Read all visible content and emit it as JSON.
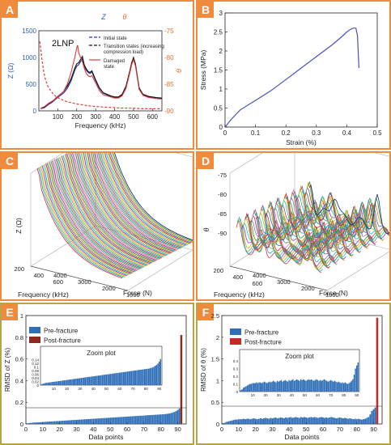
{
  "panels": {
    "A": {
      "label": "A"
    },
    "B": {
      "label": "B"
    },
    "C": {
      "label": "C"
    },
    "D": {
      "label": "D"
    },
    "E": {
      "label": "E"
    },
    "F": {
      "label": "F"
    }
  },
  "chart_data": [
    {
      "id": "A",
      "type": "line",
      "annotation": "2LNP",
      "xlabel": "Frequency (kHz)",
      "ylabel_left": "Z (Ω)",
      "ylabel_right": "θ",
      "top_symbols": {
        "left": "Z",
        "right": "θ"
      },
      "xlim": [
        0,
        650
      ],
      "ylim_left": [
        0,
        1500
      ],
      "ylim_right": [
        -90,
        -75
      ],
      "xticks": [
        "100",
        "200",
        "300",
        "400",
        "500",
        "600"
      ],
      "yticks_left": [
        "0",
        "500",
        "1000",
        "1500"
      ],
      "yticks_right": [
        "-75",
        "-80",
        "-85",
        "-90"
      ],
      "series": [
        {
          "name": "Initial state",
          "color": "#2233aa",
          "x": [
            10,
            30,
            50,
            70,
            90,
            110,
            130,
            150,
            170,
            190,
            200,
            210,
            220,
            230,
            240,
            250,
            260,
            270,
            280,
            300,
            320,
            340,
            360,
            380,
            400,
            420,
            440,
            460,
            480,
            490,
            500,
            510,
            520,
            530,
            550,
            580,
            620,
            650
          ],
          "y": [
            40,
            60,
            120,
            160,
            220,
            280,
            330,
            420,
            560,
            760,
            840,
            860,
            920,
            980,
            830,
            760,
            720,
            700,
            730,
            560,
            420,
            330,
            300,
            270,
            250,
            250,
            300,
            440,
            720,
            880,
            980,
            860,
            640,
            420,
            300,
            260,
            240,
            230
          ]
        },
        {
          "name": "Transition states (increasing compression load)",
          "color": "#111111",
          "x": [
            10,
            30,
            50,
            70,
            90,
            110,
            130,
            150,
            170,
            190,
            200,
            210,
            220,
            230,
            240,
            250,
            260,
            270,
            280,
            300,
            320,
            340,
            360,
            380,
            400,
            420,
            440,
            460,
            480,
            490,
            500,
            510,
            520,
            530,
            550,
            580,
            620,
            650
          ],
          "y": [
            45,
            70,
            130,
            170,
            240,
            300,
            360,
            460,
            600,
            800,
            880,
            900,
            960,
            1020,
            860,
            790,
            740,
            720,
            750,
            580,
            430,
            340,
            310,
            280,
            260,
            260,
            310,
            460,
            740,
            900,
            1000,
            880,
            650,
            430,
            310,
            270,
            250,
            240
          ]
        },
        {
          "name": "Damaged state",
          "color": "#e23a3a",
          "x": [
            10,
            30,
            50,
            70,
            90,
            110,
            130,
            150,
            170,
            190,
            200,
            205,
            210,
            220,
            230,
            240,
            250,
            260,
            270,
            280,
            300,
            320,
            340,
            360,
            380,
            400,
            420,
            440,
            460,
            480,
            490,
            500,
            510,
            520,
            530,
            550,
            580,
            620,
            650
          ],
          "y": [
            50,
            80,
            140,
            180,
            230,
            300,
            360,
            500,
            720,
            1000,
            1180,
            1230,
            1100,
            1000,
            920,
            800,
            700,
            660,
            640,
            660,
            520,
            380,
            300,
            280,
            260,
            240,
            240,
            280,
            420,
            700,
            860,
            960,
            840,
            620,
            400,
            290,
            250,
            230,
            220
          ]
        },
        {
          "name": "Phase",
          "color": "#e23a3a",
          "dashed": true,
          "x": [
            5,
            15,
            25,
            35,
            50,
            70,
            90,
            120,
            150,
            200,
            250,
            300,
            350,
            400,
            450,
            500,
            550,
            600,
            650
          ],
          "y": [
            -77,
            -80,
            -82.5,
            -84.2,
            -85.6,
            -86.6,
            -87.3,
            -87.9,
            -88.3,
            -88.7,
            -89,
            -89.2,
            -89.3,
            -89.4,
            -89.5,
            -89.5,
            -89.6,
            -89.6,
            -89.6
          ]
        }
      ],
      "legend": {
        "placement": "top-right",
        "entries": [
          "Initial state",
          "Transition states (increasing compression load)",
          "Damaged state"
        ]
      }
    },
    {
      "id": "B",
      "type": "line",
      "xlabel": "Strain (%)",
      "ylabel": "Stress (MPa)",
      "xlim": [
        0,
        0.5
      ],
      "ylim": [
        0,
        3
      ],
      "xticks": [
        "0",
        "0.1",
        "0.2",
        "0.3",
        "0.4",
        "0.5"
      ],
      "yticks": [
        "0",
        "0.5",
        "1",
        "1.5",
        "2",
        "2.5",
        "3"
      ],
      "series": [
        {
          "name": "",
          "color": "#4a52b8",
          "x": [
            0,
            0.02,
            0.05,
            0.08,
            0.1,
            0.15,
            0.2,
            0.25,
            0.3,
            0.35,
            0.38,
            0.4,
            0.41,
            0.42,
            0.43,
            0.435,
            0.44
          ],
          "y": [
            0,
            0.2,
            0.45,
            0.6,
            0.7,
            0.95,
            1.25,
            1.55,
            1.85,
            2.15,
            2.35,
            2.5,
            2.56,
            2.6,
            2.6,
            2.4,
            1.55
          ]
        }
      ]
    },
    {
      "id": "C",
      "type": "line",
      "projection": "3d-waterfall",
      "xlabel": "Frequency (kHz)",
      "ylabel": "Force (N)",
      "zlabel": "Z (Ω)",
      "xticks": [
        "200",
        "400",
        "600"
      ],
      "yticks": [
        "1000",
        "2000",
        "3000",
        "4000"
      ],
      "curves": 60
    },
    {
      "id": "D",
      "type": "line",
      "projection": "3d-waterfall",
      "xlabel": "Frequency (kHz)",
      "ylabel": "Force (N)",
      "zlabel": "θ",
      "xticks": [
        "200",
        "400",
        "600"
      ],
      "yticks": [
        "1000",
        "2000",
        "3000",
        "4000"
      ],
      "zticks": [
        "-75",
        "-80",
        "-85",
        "-90"
      ],
      "curves": 60
    },
    {
      "id": "E",
      "type": "bar",
      "xlabel": "Data points",
      "ylabel": "RMSD of Z (%)",
      "xlim": [
        0,
        95
      ],
      "ylim": [
        0,
        1
      ],
      "xticks": [
        "0",
        "10",
        "20",
        "30",
        "40",
        "50",
        "60",
        "70",
        "80",
        "90"
      ],
      "yticks": [
        "0",
        "0.2",
        "0.4",
        "0.6",
        "0.8",
        "1"
      ],
      "legend": [
        {
          "name": "Pre-fracture",
          "color": "#2f6fb8"
        },
        {
          "name": "Post-fracture",
          "color": "#8b2a1f"
        }
      ],
      "inset": {
        "title": "Zoom plot",
        "xticks": [
          "10",
          "20",
          "30",
          "40",
          "50",
          "60",
          "70",
          "80",
          "90"
        ],
        "yticks": [
          "0",
          "0.02",
          "0.04",
          "0.06",
          "0.08",
          "0.1",
          "0.12",
          "0.14"
        ],
        "ylim": [
          0,
          0.15
        ]
      },
      "pre_values": [
        0.005,
        0.008,
        0.01,
        0.012,
        0.013,
        0.014,
        0.015,
        0.016,
        0.017,
        0.018,
        0.019,
        0.02,
        0.021,
        0.022,
        0.023,
        0.024,
        0.025,
        0.026,
        0.027,
        0.028,
        0.029,
        0.03,
        0.031,
        0.032,
        0.033,
        0.034,
        0.035,
        0.036,
        0.037,
        0.038,
        0.039,
        0.04,
        0.041,
        0.042,
        0.043,
        0.044,
        0.045,
        0.046,
        0.047,
        0.048,
        0.049,
        0.05,
        0.051,
        0.052,
        0.053,
        0.054,
        0.055,
        0.056,
        0.057,
        0.058,
        0.059,
        0.06,
        0.061,
        0.062,
        0.063,
        0.064,
        0.065,
        0.066,
        0.067,
        0.068,
        0.069,
        0.07,
        0.071,
        0.072,
        0.073,
        0.074,
        0.075,
        0.076,
        0.077,
        0.078,
        0.079,
        0.08,
        0.081,
        0.082,
        0.083,
        0.084,
        0.085,
        0.086,
        0.087,
        0.088,
        0.089,
        0.09,
        0.092,
        0.094,
        0.096,
        0.1,
        0.105,
        0.11,
        0.118,
        0.128,
        0.142
      ],
      "post_values": [
        0.82
      ]
    },
    {
      "id": "F",
      "type": "bar",
      "xlabel": "Data points",
      "ylabel": "RMSD of θ (%)",
      "xlim": [
        0,
        95
      ],
      "ylim": [
        0,
        2.5
      ],
      "xticks": [
        "0",
        "10",
        "20",
        "30",
        "40",
        "50",
        "60",
        "70",
        "80",
        "90"
      ],
      "yticks": [
        "0",
        "0.5",
        "1",
        "1.5",
        "2",
        "2.5"
      ],
      "legend": [
        {
          "name": "Pre-fracture",
          "color": "#2f6fb8"
        },
        {
          "name": "Post-fracture",
          "color": "#c62828"
        }
      ],
      "inset": {
        "title": "Zoom plot",
        "xticks": [
          "10",
          "20",
          "30",
          "40",
          "50",
          "60",
          "70",
          "80",
          "90"
        ],
        "yticks": [
          "0",
          "0.1",
          "0.2",
          "0.3",
          "0.4"
        ],
        "ylim": [
          0,
          0.4
        ]
      },
      "pre_values": [
        0.02,
        0.03,
        0.05,
        0.06,
        0.07,
        0.08,
        0.09,
        0.1,
        0.1,
        0.11,
        0.11,
        0.11,
        0.12,
        0.11,
        0.12,
        0.12,
        0.11,
        0.12,
        0.13,
        0.12,
        0.11,
        0.12,
        0.13,
        0.12,
        0.13,
        0.14,
        0.13,
        0.12,
        0.14,
        0.13,
        0.14,
        0.15,
        0.13,
        0.14,
        0.15,
        0.14,
        0.13,
        0.15,
        0.14,
        0.15,
        0.16,
        0.14,
        0.15,
        0.16,
        0.15,
        0.14,
        0.16,
        0.15,
        0.16,
        0.15,
        0.14,
        0.15,
        0.16,
        0.15,
        0.16,
        0.15,
        0.14,
        0.15,
        0.16,
        0.15,
        0.14,
        0.15,
        0.14,
        0.15,
        0.16,
        0.15,
        0.14,
        0.13,
        0.14,
        0.15,
        0.14,
        0.13,
        0.14,
        0.13,
        0.12,
        0.13,
        0.12,
        0.11,
        0.12,
        0.11,
        0.12,
        0.11,
        0.1,
        0.11,
        0.12,
        0.14,
        0.16,
        0.22,
        0.3,
        0.34,
        0.38
      ],
      "post_values": [
        2.45
      ]
    }
  ]
}
